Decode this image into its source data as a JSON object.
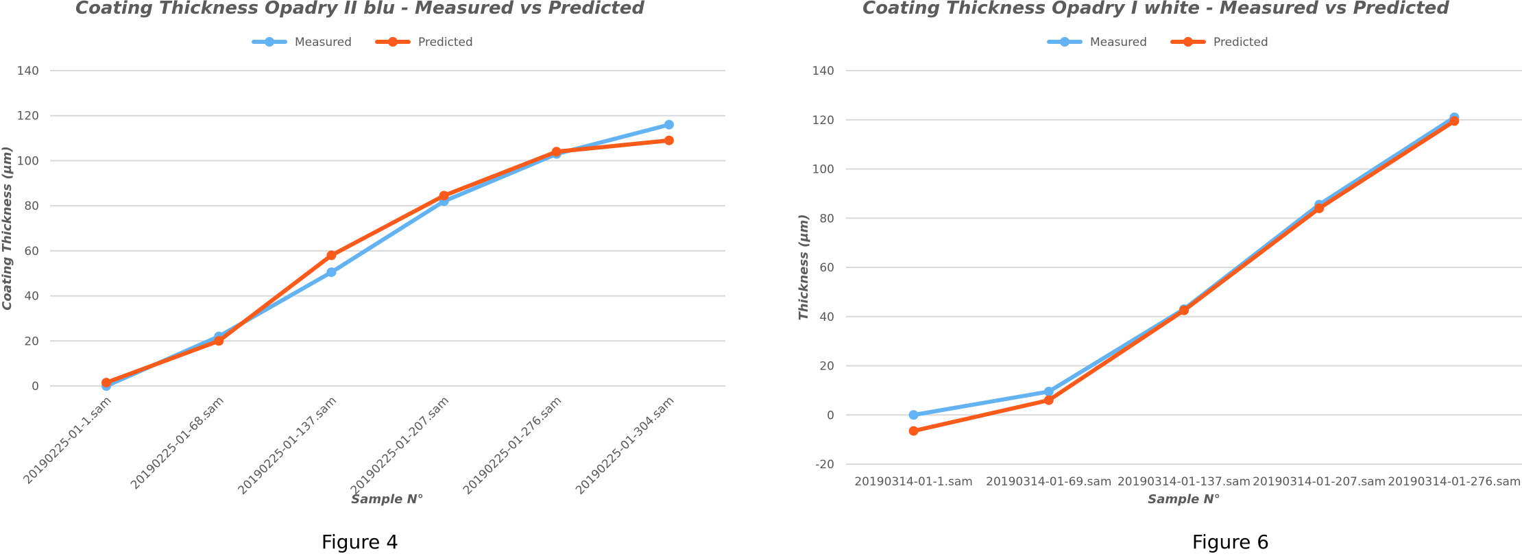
{
  "colors": {
    "measured": "#63b3f2",
    "predicted": "#fa5a1a",
    "grid": "#d9d9d9",
    "text": "#595959"
  },
  "captions": [
    "Figure 4",
    "Figure 6"
  ],
  "legend": {
    "placement": "top-center"
  },
  "chart_data": [
    {
      "type": "line",
      "title": "Coating Thickness Opadry II blu - Measured vs Predicted",
      "xlabel": "Sample N°",
      "ylabel": "Coating Thickness (µm)",
      "ylim": [
        0,
        140
      ],
      "yticks": [
        0,
        20,
        40,
        60,
        80,
        100,
        120,
        140
      ],
      "grid": true,
      "categories": [
        "20190225-01-1.sam",
        "20190225-01-68.sam",
        "20190225-01-137.sam",
        "20190225-01-207.sam",
        "20190225-01-276.sam",
        "20190225-01-304.sam"
      ],
      "series": [
        {
          "name": "Measured",
          "values": [
            0,
            22,
            50.5,
            82,
            103,
            116
          ]
        },
        {
          "name": "Predicted",
          "values": [
            1.5,
            20,
            58,
            84.5,
            104,
            109
          ]
        }
      ]
    },
    {
      "type": "line",
      "title": "Coating Thickness Opadry I white - Measured vs Predicted",
      "xlabel": "Sample N°",
      "ylabel": "Thickness (µm)",
      "ylim": [
        -20,
        140
      ],
      "yticks": [
        -20,
        0,
        20,
        40,
        60,
        80,
        100,
        120,
        140
      ],
      "grid": true,
      "categories": [
        "20190314-01-1.sam",
        "20190314-01-69.sam",
        "20190314-01-137.sam",
        "20190314-01-207.sam",
        "20190314-01-276.sam"
      ],
      "series": [
        {
          "name": "Measured",
          "values": [
            0,
            9.5,
            43,
            85.5,
            121
          ]
        },
        {
          "name": "Predicted",
          "values": [
            -6.5,
            6,
            42.5,
            84,
            119.5
          ]
        }
      ]
    }
  ]
}
